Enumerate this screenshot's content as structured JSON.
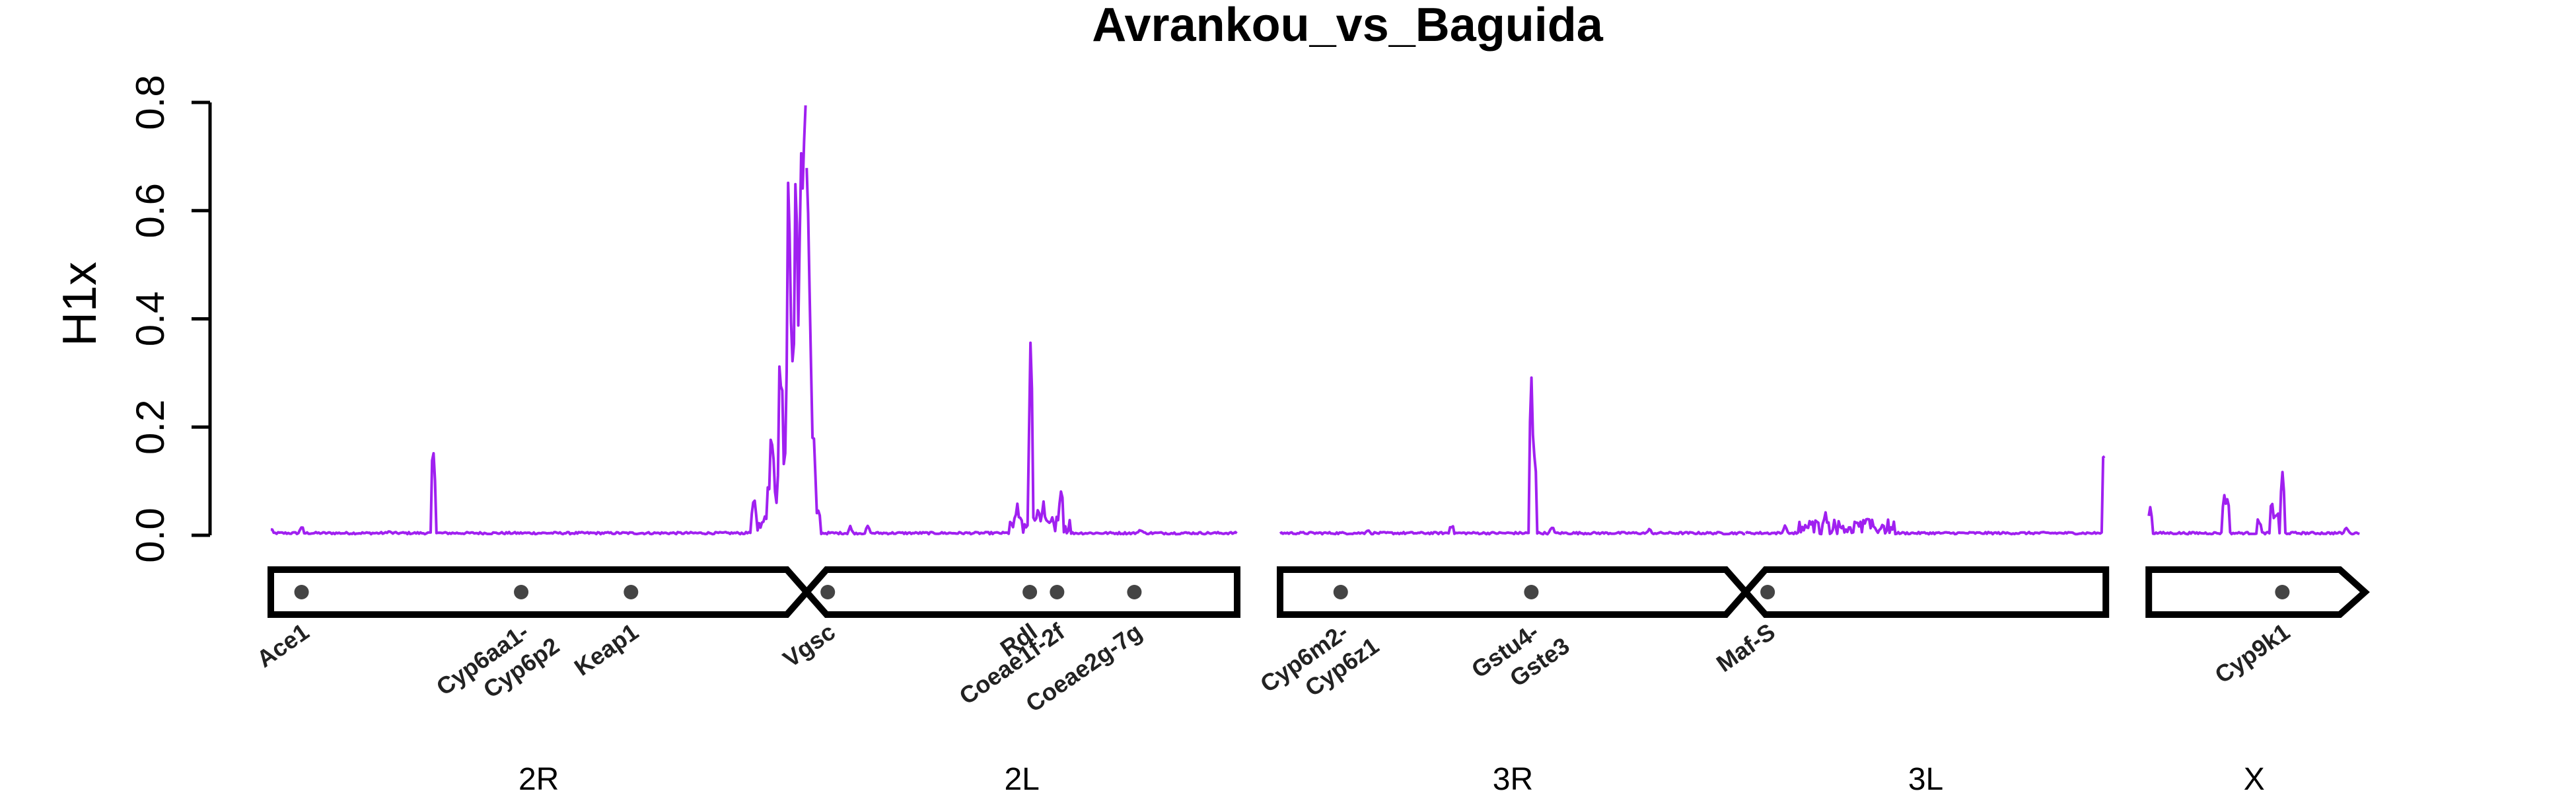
{
  "chart_data": {
    "type": "line",
    "title": "Avrankou_vs_Baguida",
    "ylabel": "H1x",
    "ylim": [
      0,
      0.85
    ],
    "y_ticks": [
      "0.0",
      "0.2",
      "0.4",
      "0.6",
      "0.8"
    ],
    "color": "#A020F0",
    "arms": [
      {
        "name": "2R",
        "length_mb": 61
      },
      {
        "name": "2L",
        "length_mb": 49
      },
      {
        "name": "3R",
        "length_mb": 53
      },
      {
        "name": "3L",
        "length_mb": 41
      },
      {
        "name": "X",
        "length_mb": 24
      }
    ],
    "centromeres": [
      "2R|2L",
      "3R|3L"
    ],
    "genes": [
      {
        "label": "Ace1",
        "arm": "2R",
        "pos_mb": 3.5
      },
      {
        "label": "Cyp6aa1-\nCyp6p2",
        "arm": "2R",
        "pos_mb": 28.5
      },
      {
        "label": "Keap1",
        "arm": "2R",
        "pos_mb": 41.0
      },
      {
        "label": "Vgsc",
        "arm": "2L",
        "pos_mb": 2.4
      },
      {
        "label": "Rdl",
        "arm": "2L",
        "pos_mb": 25.4
      },
      {
        "label": "Coeae1f-2f",
        "arm": "2L",
        "pos_mb": 28.5
      },
      {
        "label": "Coeae2g-7g",
        "arm": "2L",
        "pos_mb": 37.3
      },
      {
        "label": "Cyp6m2-\nCyp6z1",
        "arm": "3R",
        "pos_mb": 6.9
      },
      {
        "label": "Gstu4-\nGste3",
        "arm": "3R",
        "pos_mb": 28.6
      },
      {
        "label": "Maf-S",
        "arm": "3L",
        "pos_mb": 2.5
      },
      {
        "label": "Cyp9k1",
        "arm": "X",
        "pos_mb": 15.2
      }
    ],
    "peaks": [
      {
        "arm": "2R",
        "pos_mb": 0.0,
        "h1x": 0.015
      },
      {
        "arm": "2R",
        "pos_mb": 3.5,
        "h1x": 0.02
      },
      {
        "arm": "2R",
        "pos_mb": 13.5,
        "h1x": 0.01
      },
      {
        "arm": "2R",
        "pos_mb": 18.5,
        "h1x": 0.22
      },
      {
        "arm": "2R",
        "pos_mb": 55.0,
        "h1x": 0.08
      },
      {
        "arm": "2R",
        "pos_mb": 57.0,
        "h1x": 0.28
      },
      {
        "arm": "2R",
        "pos_mb": 58.0,
        "h1x": 0.5
      },
      {
        "arm": "2R",
        "pos_mb": 59.0,
        "h1x": 0.83
      },
      {
        "arm": "2R",
        "pos_mb": 59.8,
        "h1x": 0.85
      },
      {
        "arm": "2R",
        "pos_mb": 60.3,
        "h1x": 0.83
      },
      {
        "arm": "2L",
        "pos_mb": 0.1,
        "h1x": 0.65
      },
      {
        "arm": "2L",
        "pos_mb": 0.4,
        "h1x": 0.5
      },
      {
        "arm": "2L",
        "pos_mb": 0.8,
        "h1x": 0.25
      },
      {
        "arm": "2L",
        "pos_mb": 1.4,
        "h1x": 0.06
      },
      {
        "arm": "2L",
        "pos_mb": 5.0,
        "h1x": 0.02
      },
      {
        "arm": "2L",
        "pos_mb": 7.0,
        "h1x": 0.025
      },
      {
        "arm": "2L",
        "pos_mb": 24.0,
        "h1x": 0.07
      },
      {
        "arm": "2L",
        "pos_mb": 25.5,
        "h1x": 0.385
      },
      {
        "arm": "2L",
        "pos_mb": 26.3,
        "h1x": 0.06
      },
      {
        "arm": "2L",
        "pos_mb": 27.0,
        "h1x": 0.07
      },
      {
        "arm": "2L",
        "pos_mb": 29.0,
        "h1x": 0.1
      },
      {
        "arm": "2L",
        "pos_mb": 38.0,
        "h1x": 0.015
      },
      {
        "arm": "3R",
        "pos_mb": 10.0,
        "h1x": 0.015
      },
      {
        "arm": "3R",
        "pos_mb": 19.5,
        "h1x": 0.025
      },
      {
        "arm": "3R",
        "pos_mb": 28.6,
        "h1x": 0.355
      },
      {
        "arm": "3R",
        "pos_mb": 29.0,
        "h1x": 0.23
      },
      {
        "arm": "3R",
        "pos_mb": 31.0,
        "h1x": 0.02
      },
      {
        "arm": "3R",
        "pos_mb": 42.0,
        "h1x": 0.015
      },
      {
        "arm": "3L",
        "pos_mb": 4.5,
        "h1x": 0.02
      },
      {
        "arm": "3L",
        "pos_mb": 9.0,
        "h1x": 0.055
      },
      {
        "arm": "3L",
        "pos_mb": 12.5,
        "h1x": 0.03
      },
      {
        "arm": "3L",
        "pos_mb": 14.0,
        "h1x": 0.025
      },
      {
        "arm": "3L",
        "pos_mb": 40.8,
        "h1x": 0.18
      },
      {
        "arm": "X",
        "pos_mb": 0.2,
        "h1x": 0.065
      },
      {
        "arm": "X",
        "pos_mb": 8.6,
        "h1x": 0.115
      },
      {
        "arm": "X",
        "pos_mb": 8.9,
        "h1x": 0.095
      },
      {
        "arm": "X",
        "pos_mb": 12.5,
        "h1x": 0.04
      },
      {
        "arm": "X",
        "pos_mb": 14.0,
        "h1x": 0.075
      },
      {
        "arm": "X",
        "pos_mb": 14.6,
        "h1x": 0.06
      },
      {
        "arm": "X",
        "pos_mb": 15.2,
        "h1x": 0.14
      },
      {
        "arm": "X",
        "pos_mb": 22.5,
        "h1x": 0.02
      }
    ]
  }
}
